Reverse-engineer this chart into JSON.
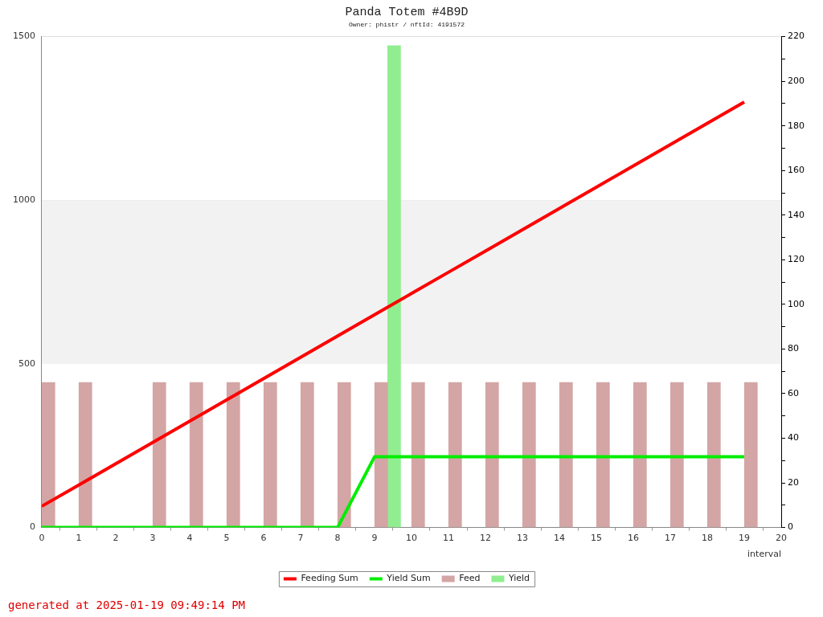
{
  "chart_data": {
    "type": "bar",
    "title": "Panda Totem #4B9D",
    "subtitle": "Owner: phistr / nftId: 4191572",
    "xlabel": "interval",
    "x": [
      0,
      1,
      2,
      3,
      4,
      5,
      6,
      7,
      8,
      9,
      10,
      11,
      12,
      13,
      14,
      15,
      16,
      17,
      18,
      19
    ],
    "series": [
      {
        "name": "Feeding Sum",
        "type": "line",
        "color": "#ff0000",
        "values": [
          65,
          130,
          195,
          260,
          325,
          390,
          455,
          520,
          585,
          650,
          715,
          780,
          845,
          910,
          975,
          1040,
          1105,
          1170,
          1235,
          1300
        ]
      },
      {
        "name": "Yield Sum",
        "type": "line",
        "color": "#00ee00",
        "values": [
          0,
          0,
          0,
          0,
          0,
          0,
          0,
          0,
          0,
          216,
          216,
          216,
          216,
          216,
          216,
          216,
          216,
          216,
          216,
          216
        ]
      },
      {
        "name": "Feed",
        "axis": "y2",
        "color": "#d4a5a5",
        "x": [
          0.18,
          1.18,
          2.18,
          3.18,
          4.18,
          5.18,
          6.18,
          7.18,
          8.18,
          9.18,
          10.18,
          11.18,
          12.18,
          13.18,
          14.18,
          15.18,
          16.18,
          17.18,
          18.18,
          19.18
        ],
        "values": [
          65,
          65,
          null,
          65,
          65,
          65,
          65,
          65,
          65,
          65,
          65,
          65,
          65,
          65,
          65,
          65,
          65,
          65,
          65,
          65
        ]
      },
      {
        "name": "Yield",
        "axis": "y2",
        "color": "#90ee90",
        "x": [
          9.53
        ],
        "values": [
          216
        ]
      }
    ],
    "xlim": [
      0,
      20
    ],
    "xticks": [
      0,
      1,
      2,
      3,
      4,
      5,
      6,
      7,
      8,
      9,
      10,
      11,
      12,
      13,
      14,
      15,
      16,
      17,
      18,
      19,
      20
    ],
    "ylim": [
      0,
      1500
    ],
    "yticks": [
      0,
      500,
      1000,
      1500
    ],
    "y2lim": [
      0,
      220
    ],
    "y2ticks": [
      0,
      {
        "value": 10,
        "label": null
      },
      20,
      {
        "value": 30,
        "label": null
      },
      40,
      {
        "value": 50,
        "label": null
      },
      60,
      {
        "value": 70,
        "label": null
      },
      80,
      {
        "value": 90,
        "label": null
      },
      100,
      {
        "value": 110,
        "label": null
      },
      120,
      {
        "value": 130,
        "label": null
      },
      140,
      {
        "value": 150,
        "label": null
      },
      160,
      {
        "value": 170,
        "label": null
      },
      180,
      {
        "value": 190,
        "label": null
      },
      200,
      {
        "value": 210,
        "label": null
      },
      220
    ],
    "bands": [
      {
        "axis": "y",
        "from": 500,
        "to": 1000,
        "color": "#f2f2f2"
      }
    ],
    "grid": "y",
    "legend": "bottom",
    "marker": "none",
    "line_style": "solid",
    "annotations": [
      "generated at 2025-01-19 09:49:14 PM"
    ]
  }
}
